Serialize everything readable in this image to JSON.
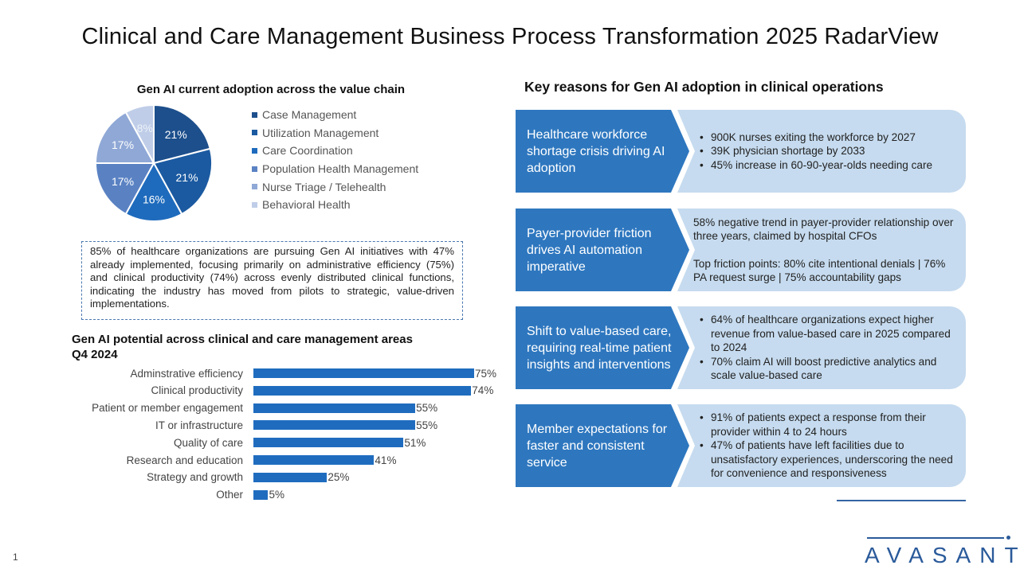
{
  "title": "Clinical and Care Management Business Process Transformation 2025 RadarView",
  "chart_data": [
    {
      "type": "pie",
      "title": "Gen AI current adoption across the value chain",
      "categories": [
        "Case Management",
        "Utilization Management",
        "Care Coordination",
        "Population Health Management",
        "Nurse Triage / Telehealth",
        "Behavioral Health"
      ],
      "values": [
        21,
        21,
        16,
        17,
        17,
        8
      ],
      "labels": [
        "21%",
        "21%",
        "16%",
        "17%",
        "17%",
        "8%"
      ],
      "colors": [
        "#1d4f8c",
        "#1b5aa1",
        "#1e6bbd",
        "#5a82c3",
        "#8fa8d6",
        "#bfcde8"
      ],
      "legend": "right"
    },
    {
      "type": "bar",
      "orientation": "horizontal",
      "title": "Gen AI potential across clinical and care management areas Q4 2024",
      "categories": [
        "Adminstrative efficiency",
        "Clinical productivity",
        "Patient or member engagement",
        "IT or infrastructure",
        "Quality of care",
        "Research and education",
        "Strategy and growth",
        "Other"
      ],
      "values": [
        75,
        74,
        55,
        55,
        51,
        41,
        25,
        5
      ],
      "labels": [
        "75%",
        "74%",
        "55%",
        "55%",
        "51%",
        "41%",
        "25%",
        "5%"
      ],
      "color": "#1f6cbf",
      "xlim": [
        0,
        75
      ]
    }
  ],
  "note": "85% of healthcare organizations are pursuing Gen AI initiatives with 47% already implemented, focusing primarily on administrative efficiency (75%) and clinical productivity (74%) across evenly distributed clinical functions, indicating the industry has moved from pilots to strategic, value-driven implementations.",
  "bar_title_line1": "Gen AI potential across clinical and care management areas",
  "bar_title_line2": "Q4 2024",
  "right_title": "Key reasons for Gen AI adoption in clinical operations",
  "cards": [
    {
      "heading": "Healthcare workforce shortage crisis driving AI adoption",
      "bullets": [
        "900K nurses exiting the workforce by 2027",
        "39K physician shortage by 2033",
        "45% increase in 60-90-year-olds needing care"
      ]
    },
    {
      "heading": "Payer-provider friction drives AI automation imperative",
      "paragraphs": [
        "58% negative trend in payer-provider relationship over three years, claimed by hospital CFOs",
        "Top friction points: 80% cite intentional denials | 76% PA request surge | 75% accountability gaps"
      ]
    },
    {
      "heading": "Shift to value-based care, requiring real-time patient insights and interventions",
      "bullets": [
        "64% of healthcare organizations expect higher revenue from value-based care in 2025 compared to 2024",
        "70% claim AI will boost predictive analytics and scale value-based care"
      ]
    },
    {
      "heading": "Member expectations for faster and consistent service",
      "bullets": [
        "91% of patients expect a response from their provider within 4 to 24 hours",
        "47% of patients have left facilities due to unsatisfactory experiences, underscoring the need for convenience and responsiveness"
      ]
    }
  ],
  "logo": "AVASANT",
  "page_number": "1"
}
